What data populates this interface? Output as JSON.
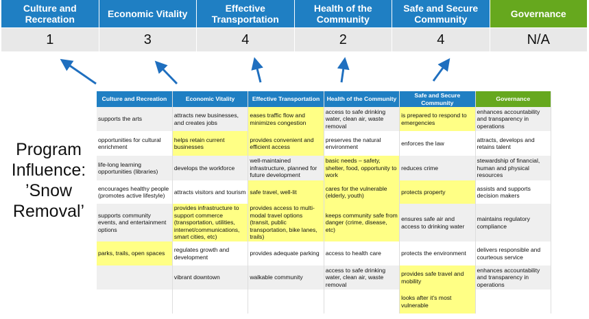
{
  "summary": {
    "headers": [
      "Culture and Recreation",
      "Economic Vitality",
      "Effective Transportation",
      "Health of the Community",
      "Safe and Secure Community",
      "Governance"
    ],
    "scores": [
      "1",
      "3",
      "4",
      "2",
      "4",
      "N/A"
    ]
  },
  "title": "Program Influence: ’Snow Removal’",
  "colors": {
    "header_blue": "#1f7fc3",
    "governance_green": "#66a81e",
    "highlight": "#ffff85",
    "arrow": "#1f6fbf"
  },
  "table": {
    "headers": [
      "Culture and Recreation",
      "Economic Vitality",
      "Effective Transportation",
      "Health of the Community",
      "Safe and Secure Community",
      "Governance"
    ],
    "rows": [
      {
        "cells": [
          "supports the arts",
          "attracts new businesses, and creates jobs",
          "eases traffic flow and minimizes congestion",
          "access to safe drinking water, clean air, waste removal",
          "is prepared to respond to emergencies",
          "enhances accountability and transparency in operations"
        ],
        "highlighted": [
          false,
          false,
          true,
          false,
          true,
          false
        ]
      },
      {
        "cells": [
          "opportunities for cultural enrichment",
          "helps retain current businesses",
          "provides convenient and efficient access",
          "preserves the natural environment",
          "enforces the law",
          "attracts, develops and retains talent"
        ],
        "highlighted": [
          false,
          true,
          true,
          false,
          false,
          false
        ]
      },
      {
        "cells": [
          "life-long learning opportunities (libraries)",
          "develops the workforce",
          "well-maintained infrastructure, planned for future development",
          "basic needs – safety, shelter, food, opportunity to work",
          "reduces crime",
          "stewardship of financial, human and physical resources"
        ],
        "highlighted": [
          false,
          false,
          false,
          true,
          false,
          false
        ]
      },
      {
        "cells": [
          "encourages healthy people (promotes active lifestyle)",
          "attracts visitors and tourism",
          "safe travel, well-lit",
          "cares for the vulnerable (elderly, youth)",
          "protects property",
          "assists and supports decision makers"
        ],
        "highlighted": [
          false,
          false,
          true,
          true,
          true,
          false
        ]
      },
      {
        "cells": [
          "supports community events, and entertainment options",
          "provides infrastructure to support commerce (transportation, utilities, internet/communications, smart cities, etc)",
          "provides access to multi-modal travel options (transit, public transportation, bike lanes, trails)",
          "keeps community safe from danger (crime, disease, etc)",
          "ensures safe air and access to drinking water",
          "maintains regulatory compliance"
        ],
        "highlighted": [
          false,
          true,
          true,
          true,
          false,
          false
        ]
      },
      {
        "cells": [
          "parks, trails, open spaces",
          "regulates growth and development",
          "provides adequate parking",
          "access to health care",
          "protects the environment",
          "delivers responsible and courteous service"
        ],
        "highlighted": [
          true,
          false,
          false,
          false,
          false,
          false
        ]
      },
      {
        "cells": [
          "",
          "vibrant downtown",
          "walkable community",
          "access to safe drinking water, clean air, waste removal",
          "provides safe travel and mobility",
          "enhances accountability and transparency in operations"
        ],
        "highlighted": [
          false,
          false,
          false,
          false,
          true,
          false
        ]
      },
      {
        "cells": [
          "",
          "",
          "",
          "",
          "looks after it's most vulnerable",
          ""
        ],
        "highlighted": [
          false,
          false,
          false,
          false,
          true,
          false
        ]
      }
    ]
  }
}
